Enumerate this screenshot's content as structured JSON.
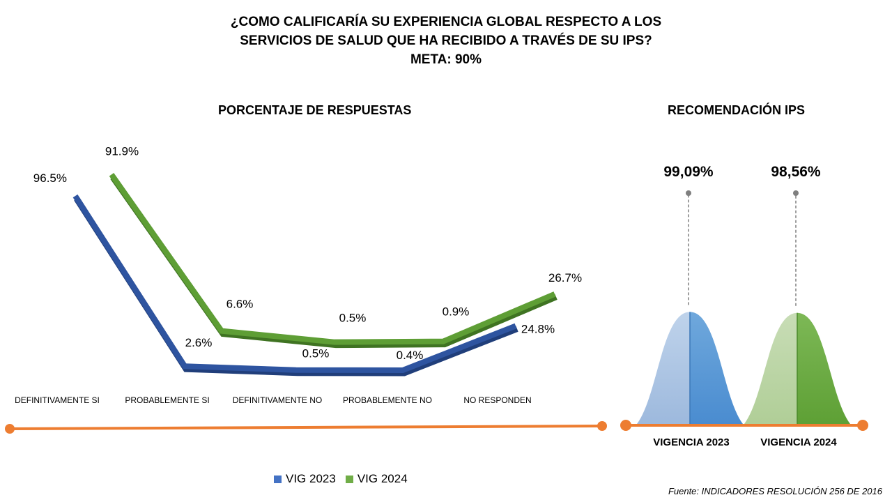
{
  "title": {
    "line1": "¿COMO CALIFICARÍA SU EXPERIENCIA GLOBAL RESPECTO A LOS",
    "line2": "SERVICIOS DE SALUD QUE HA RECIBIDO A TRAVÉS DE SU IPS?",
    "line3": "META: 90%"
  },
  "left_subtitle": "PORCENTAJE DE RESPUESTAS",
  "right_subtitle": "RECOMENDACIÓN IPS",
  "source": "Fuente: INDICADORES RESOLUCIÓN 256 DE 2016",
  "colors": {
    "vig2023": "#2E54A0",
    "vig2024": "#5E9E35",
    "axis": "#ED7D31"
  },
  "chart_data": [
    {
      "type": "line",
      "title": "PORCENTAJE DE RESPUESTAS",
      "categories": [
        "DEFINITIVAMENTE SI",
        "PROBABLEMENTE SI",
        "DEFINITIVAMENTE NO",
        "PROBABLEMENTE NO",
        "NO RESPONDEN"
      ],
      "series": [
        {
          "name": "VIG 2023",
          "values": [
            96.5,
            2.6,
            0.5,
            0.4,
            24.8
          ],
          "labels": [
            "96.5%",
            "2.6%",
            "0.5%",
            "0.4%",
            "24.8%"
          ]
        },
        {
          "name": "VIG 2024",
          "values": [
            91.9,
            6.6,
            0.5,
            0.9,
            26.7
          ],
          "labels": [
            "91.9%",
            "6.6%",
            "0.5%",
            "0.9%",
            "26.7%"
          ]
        }
      ],
      "legend": "bottom",
      "grid": false
    },
    {
      "type": "bar",
      "title": "RECOMENDACIÓN IPS",
      "categories": [
        "VIGENCIA 2023",
        "VIGENCIA 2024"
      ],
      "values": [
        99.09,
        98.56
      ],
      "labels": [
        "99,09%",
        "98,56%"
      ],
      "grid": false
    }
  ]
}
